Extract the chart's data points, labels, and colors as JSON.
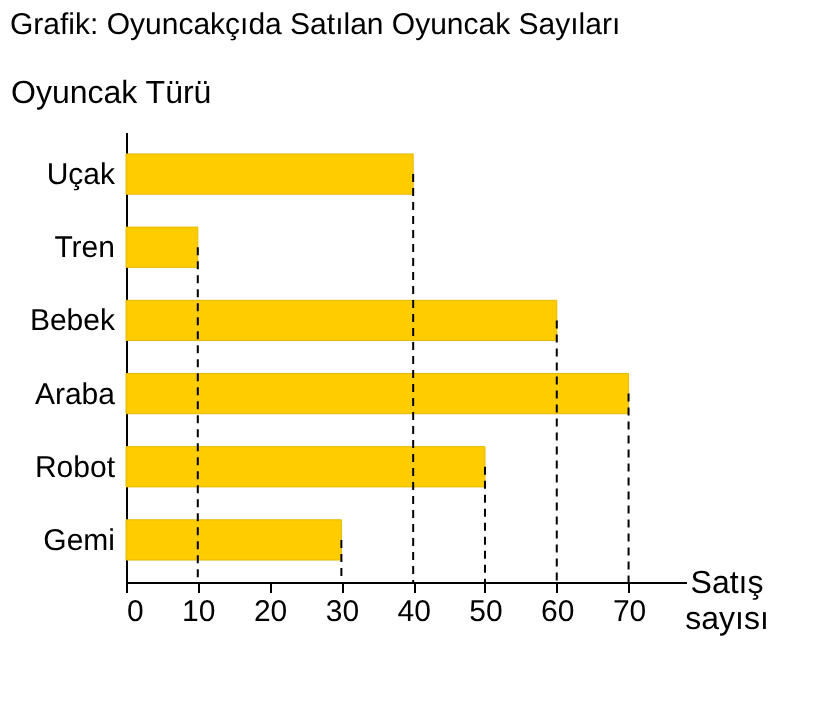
{
  "chart_data": {
    "type": "bar",
    "orientation": "horizontal",
    "title": "Grafik: Oyuncakçıda Satılan Oyuncak Sayıları",
    "ylabel": "Oyuncak Türü",
    "xlabel": "Satış sayısı",
    "categories": [
      "Uçak",
      "Tren",
      "Bebek",
      "Araba",
      "Robot",
      "Gemi"
    ],
    "values": [
      40,
      10,
      60,
      70,
      50,
      30
    ],
    "color": "#ffcc00",
    "xlim": [
      0,
      78
    ],
    "xticks": [
      0,
      10,
      20,
      30,
      40,
      50,
      60,
      70
    ],
    "grid": false,
    "ref_lines": [
      {
        "axis": "x",
        "value": 40,
        "line_style": "dashed",
        "color": "#000000"
      },
      {
        "axis": "x",
        "value": 10,
        "line_style": "dashed",
        "color": "#000000"
      },
      {
        "axis": "x",
        "value": 60,
        "line_style": "dashed",
        "color": "#000000"
      },
      {
        "axis": "x",
        "value": 70,
        "line_style": "dashed",
        "color": "#000000"
      },
      {
        "axis": "x",
        "value": 50,
        "line_style": "dashed",
        "color": "#000000"
      },
      {
        "axis": "x",
        "value": 30,
        "line_style": "dashed",
        "color": "#000000"
      }
    ]
  }
}
